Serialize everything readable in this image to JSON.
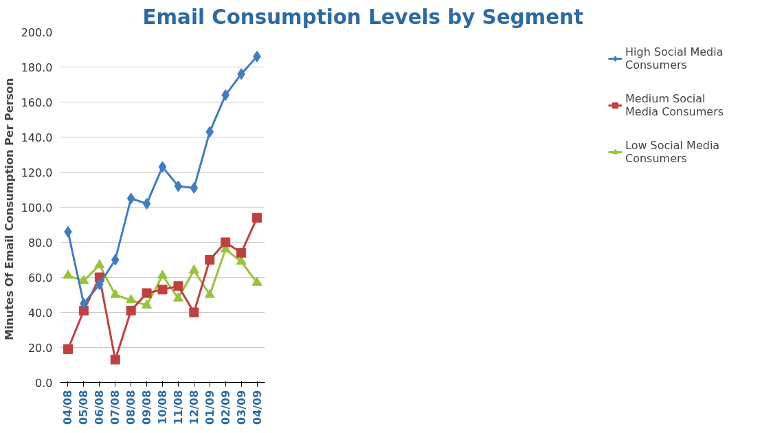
{
  "chart_data": {
    "type": "line",
    "title": "Email Consumption Levels by Segment",
    "ylabel": "Minutes Of Email Consumption  Per Person",
    "categories": [
      "04/08",
      "05/08",
      "06/08",
      "07/08",
      "08/08",
      "09/08",
      "10/08",
      "11/08",
      "12/08",
      "01/09",
      "02/09",
      "03/09",
      "04/09"
    ],
    "series": [
      {
        "name": "High Social Media Consumers",
        "color": "#3f7cc4",
        "marker": "diamond",
        "values": [
          86,
          45,
          56,
          70,
          105,
          102,
          123,
          112,
          111,
          143,
          164,
          176,
          186
        ]
      },
      {
        "name": "Medium Social Media Consumers",
        "color": "#c0403e",
        "marker": "square",
        "values": [
          19,
          41,
          60,
          13,
          41,
          51,
          53,
          55,
          40,
          70,
          80,
          74,
          94
        ]
      },
      {
        "name": "Low Social Media Consumers",
        "color": "#9bc23c",
        "marker": "triangle",
        "values": [
          61,
          58,
          67,
          50,
          47,
          44,
          61,
          48,
          64,
          50,
          76,
          69,
          57
        ]
      }
    ],
    "ylim": [
      0,
      200
    ],
    "yticks": [
      {
        "value": 0,
        "label": "0.0"
      },
      {
        "value": 20,
        "label": "20.0"
      },
      {
        "value": 40,
        "label": "40.0"
      },
      {
        "value": 60,
        "label": "60.0"
      },
      {
        "value": 80,
        "label": "80.0"
      },
      {
        "value": 100,
        "label": "100.0"
      },
      {
        "value": 120,
        "label": "120.0"
      },
      {
        "value": 140,
        "label": "140.0"
      },
      {
        "value": 160,
        "label": "160.0"
      },
      {
        "value": 180,
        "label": "180.0"
      },
      {
        "value": 200,
        "label": "200.0"
      }
    ],
    "grid": "y",
    "legend": "right",
    "line_style": "solid"
  }
}
